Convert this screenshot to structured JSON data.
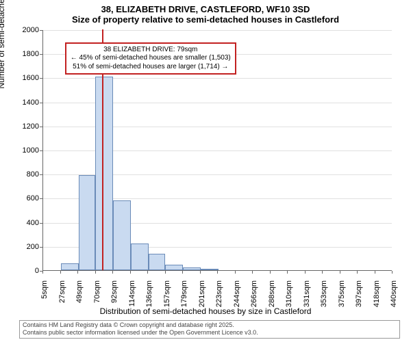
{
  "title": {
    "line1": "38, ELIZABETH DRIVE, CASTLEFORD, WF10 3SD",
    "line2": "Size of property relative to semi-detached houses in Castleford",
    "fontsize": 13,
    "fontweight": "bold"
  },
  "chart": {
    "type": "histogram",
    "background_color": "#ffffff",
    "grid_color": "#e0e0e0",
    "axis_color": "#666666",
    "bar_fill": "#c9daf0",
    "bar_border": "#6a8bb8",
    "marker_color": "#c22020",
    "ylabel": "Number of semi-detached properties",
    "xlabel": "Distribution of semi-detached houses by size in Castleford",
    "label_fontsize": 12,
    "tick_fontsize": 11,
    "ylim": [
      0,
      2000
    ],
    "ytick_step": 200,
    "yticks": [
      0,
      200,
      400,
      600,
      800,
      1000,
      1200,
      1400,
      1600,
      1800,
      2000
    ],
    "xticks": [
      "5sqm",
      "27sqm",
      "49sqm",
      "70sqm",
      "92sqm",
      "114sqm",
      "136sqm",
      "157sqm",
      "179sqm",
      "201sqm",
      "223sqm",
      "244sqm",
      "266sqm",
      "288sqm",
      "310sqm",
      "331sqm",
      "353sqm",
      "375sqm",
      "397sqm",
      "418sqm",
      "440sqm"
    ],
    "xlim_sqm": [
      5,
      440
    ],
    "bars": [
      {
        "x_sqm": 27,
        "width_sqm": 22,
        "value": 55
      },
      {
        "x_sqm": 49,
        "width_sqm": 21,
        "value": 790
      },
      {
        "x_sqm": 70,
        "width_sqm": 22,
        "value": 1610
      },
      {
        "x_sqm": 92,
        "width_sqm": 22,
        "value": 580
      },
      {
        "x_sqm": 114,
        "width_sqm": 22,
        "value": 220
      },
      {
        "x_sqm": 136,
        "width_sqm": 21,
        "value": 135
      },
      {
        "x_sqm": 157,
        "width_sqm": 22,
        "value": 45
      },
      {
        "x_sqm": 179,
        "width_sqm": 22,
        "value": 25
      },
      {
        "x_sqm": 201,
        "width_sqm": 22,
        "value": 10
      }
    ],
    "marker_x_sqm": 79
  },
  "annotation": {
    "line1": "38 ELIZABETH DRIVE: 79sqm",
    "line2": "← 45% of semi-detached houses are smaller (1,503)",
    "line3": "51% of semi-detached houses are larger (1,714) →",
    "fontsize": 10,
    "border_color": "#c22020",
    "box_y_value": 1900
  },
  "footer": {
    "line1": "Contains HM Land Registry data © Crown copyright and database right 2025.",
    "line2": "Contains public sector information licensed under the Open Government Licence v3.0.",
    "fontsize": 9,
    "text_color": "#444444",
    "border_color": "#999999"
  }
}
